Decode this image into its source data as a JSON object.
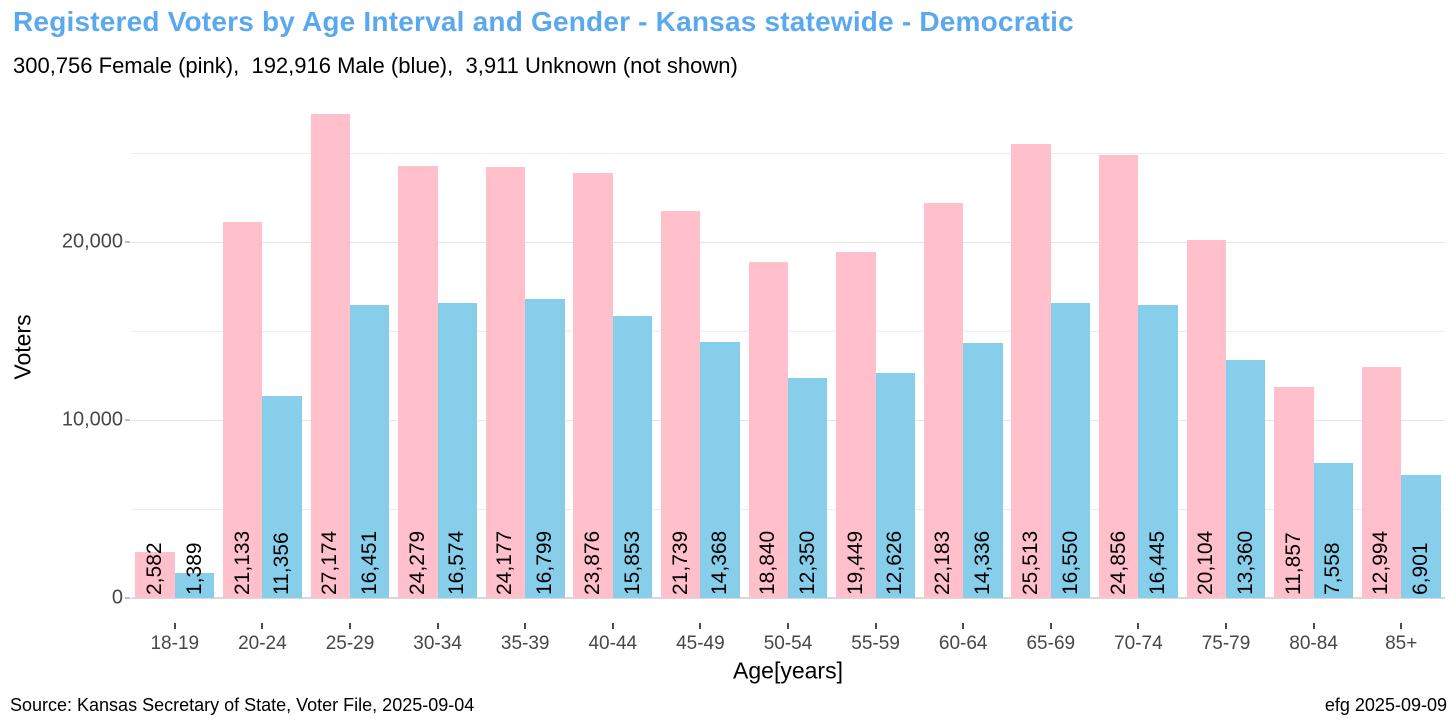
{
  "header": {
    "title": "Registered Voters by Age Interval and Gender - Kansas statewide - Democratic",
    "subtitle": "300,756 Female (pink),  192,916 Male (blue),  3,911 Unknown (not shown)"
  },
  "footer": {
    "source": "Source: Kansas Secretary of State, Voter File, 2025-09-04",
    "credit": "efg 2025-09-09"
  },
  "colors": {
    "title_blue": "#5aa9ee",
    "female_pink": "#ffc0cb",
    "male_blue": "#87ceeb",
    "gridline_major": "#e4e4e4",
    "gridline_minor": "#ededed",
    "axis_text": "#474747"
  },
  "chart_data": {
    "type": "bar",
    "title": "Registered Voters by Age Interval and Gender - Kansas statewide - Democratic",
    "subtitle": "300,756 Female (pink),  192,916 Male (blue),  3,911 Unknown (not shown)",
    "xlabel": "Age[years]",
    "ylabel": "Voters",
    "categories": [
      "18-19",
      "20-24",
      "25-29",
      "30-34",
      "35-39",
      "40-44",
      "45-49",
      "50-54",
      "55-59",
      "60-64",
      "65-69",
      "70-74",
      "75-79",
      "80-84",
      "85+"
    ],
    "series": [
      {
        "name": "Female",
        "color": "#ffc0cb",
        "values": [
          2582,
          21133,
          27174,
          24279,
          24177,
          23876,
          21739,
          18840,
          19449,
          22183,
          25513,
          24856,
          20104,
          11857,
          12994
        ]
      },
      {
        "name": "Male",
        "color": "#87ceeb",
        "values": [
          1389,
          11356,
          16451,
          16574,
          16799,
          15853,
          14368,
          12350,
          12626,
          14336,
          16550,
          16445,
          13360,
          7558,
          6901
        ]
      }
    ],
    "totals": {
      "female": 300756,
      "male": 192916,
      "unknown": 3911
    },
    "ylim": [
      0,
      28130
    ],
    "yticks": [
      {
        "value": 0,
        "label": "0"
      },
      {
        "value": 10000,
        "label": "10,000"
      },
      {
        "value": 20000,
        "label": "20,000"
      }
    ],
    "gridlines": [
      5000,
      10000,
      15000,
      20000,
      25000
    ],
    "grid": "horizontal only, light gray",
    "legend_position": "none (series colors explained in subtitle)",
    "bar_value_labels": "rotated 90deg, at base of bars, comma-formatted"
  }
}
